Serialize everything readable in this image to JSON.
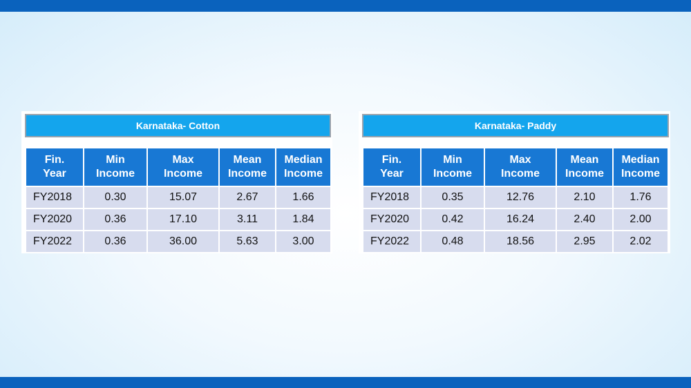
{
  "tables": [
    {
      "title": "Karnataka- Cotton",
      "headers": [
        [
          "Fin.",
          "Year"
        ],
        [
          "Min",
          "Income"
        ],
        [
          "Max",
          "Income"
        ],
        [
          "Mean",
          "Income"
        ],
        [
          "Median",
          "Income"
        ]
      ],
      "rows": [
        [
          "FY2018",
          "0.30",
          "15.07",
          "2.67",
          "1.66"
        ],
        [
          "FY2020",
          "0.36",
          "17.10",
          "3.11",
          "1.84"
        ],
        [
          "FY2022",
          "0.36",
          "36.00",
          "5.63",
          "3.00"
        ]
      ]
    },
    {
      "title": "Karnataka- Paddy",
      "headers": [
        [
          "Fin.",
          "Year"
        ],
        [
          "Min",
          "Income"
        ],
        [
          "Max",
          "Income"
        ],
        [
          "Mean",
          "Income"
        ],
        [
          "Median",
          "Income"
        ]
      ],
      "rows": [
        [
          "FY2018",
          "0.35",
          "12.76",
          "2.10",
          "1.76"
        ],
        [
          "FY2020",
          "0.42",
          "16.24",
          "2.40",
          "2.00"
        ],
        [
          "FY2022",
          "0.48",
          "18.56",
          "2.95",
          "2.02"
        ]
      ]
    }
  ],
  "colors": {
    "frame_bar": "#0a62bd",
    "banner": "#14a5ed",
    "header": "#1878d4",
    "row": "#d7dcee"
  }
}
